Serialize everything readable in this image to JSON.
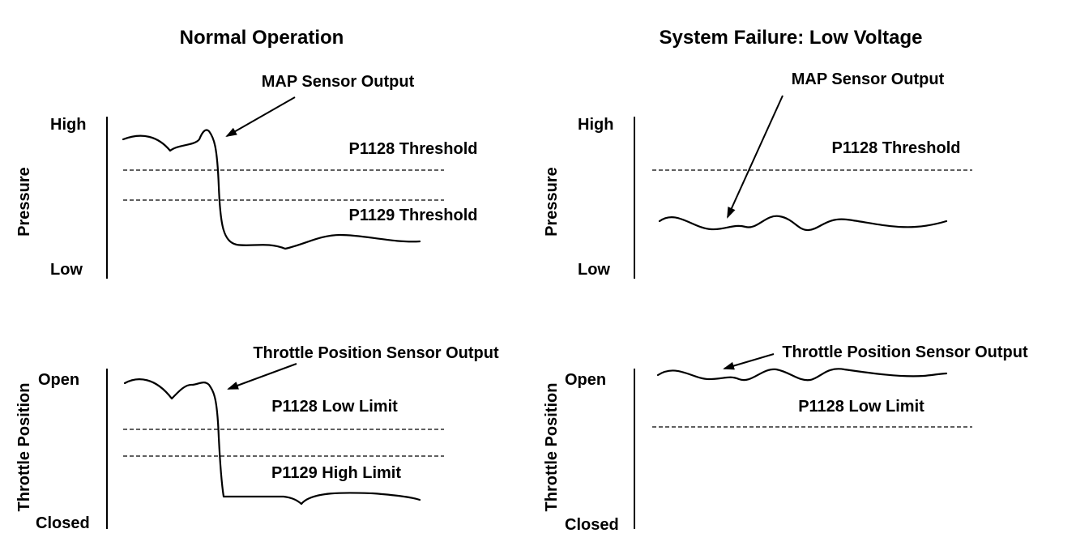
{
  "left": {
    "title": "Normal Operation",
    "pressure_panel": {
      "axis_label": "Pressure",
      "high_label": "High",
      "low_label": "Low",
      "trace_label": "MAP Sensor Output",
      "threshold_1": "P1128 Threshold",
      "threshold_2": "P1129 Threshold"
    },
    "throttle_panel": {
      "axis_label": "Throttle Position",
      "high_label": "Open",
      "low_label": "Closed",
      "trace_label": "Throttle Position Sensor Output",
      "limit_1": "P1128 Low Limit",
      "limit_2": "P1129 High Limit"
    }
  },
  "right": {
    "title": "System Failure: Low Voltage",
    "pressure_panel": {
      "axis_label": "Pressure",
      "high_label": "High",
      "low_label": "Low",
      "trace_label": "MAP Sensor Output",
      "threshold_1": "P1128 Threshold"
    },
    "throttle_panel": {
      "axis_label": "Throttle Position",
      "high_label": "Open",
      "low_label": "Closed",
      "trace_label": "Throttle Position Sensor Output",
      "limit_1": "P1128 Low Limit"
    }
  }
}
